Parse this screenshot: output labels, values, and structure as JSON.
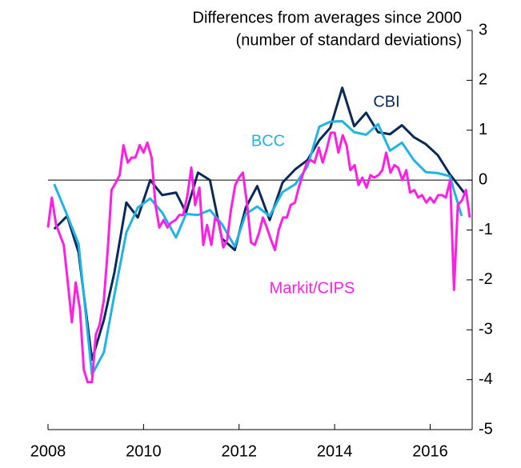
{
  "chart_data": {
    "type": "line",
    "title": "Differences from averages since 2000",
    "subtitle": "(number of standard deviations)",
    "xlim": [
      2008,
      2016.88
    ],
    "xticks": [
      2008,
      2010,
      2012,
      2014,
      2016
    ],
    "ylim": [
      -5,
      3
    ],
    "yticks": [
      -5,
      -4,
      -3,
      -2,
      -1,
      0,
      1,
      2,
      3
    ],
    "y_axis_side": "right",
    "zero_line": true,
    "series": [
      {
        "name": "CBI",
        "color": "#0b2a5c",
        "x": [
          2008.13,
          2008.4,
          2008.64,
          2008.92,
          2009.17,
          2009.39,
          2009.64,
          2009.88,
          2010.14,
          2010.39,
          2010.68,
          2010.89,
          2011.14,
          2011.39,
          2011.64,
          2011.91,
          2012.14,
          2012.38,
          2012.64,
          2012.91,
          2013.18,
          2013.43,
          2013.68,
          2013.91,
          2014.16,
          2014.41,
          2014.66,
          2014.91,
          2015.16,
          2015.41,
          2015.66,
          2015.91,
          2016.16,
          2016.41,
          2016.75
        ],
        "values": [
          -0.98,
          -0.72,
          -1.45,
          -3.6,
          -2.8,
          -1.85,
          -0.45,
          -0.75,
          0.0,
          -0.3,
          -0.25,
          -0.65,
          0.15,
          0.0,
          -1.17,
          -1.4,
          -0.55,
          -0.12,
          -0.8,
          -0.05,
          0.22,
          0.4,
          0.8,
          1.05,
          1.85,
          1.08,
          1.35,
          0.96,
          0.92,
          1.1,
          0.86,
          0.72,
          0.5,
          0.12,
          -0.3
        ]
      },
      {
        "name": "BCC",
        "color": "#1eb4e6",
        "x": [
          2008.13,
          2008.4,
          2008.64,
          2008.92,
          2009.17,
          2009.39,
          2009.64,
          2009.88,
          2010.14,
          2010.39,
          2010.68,
          2010.89,
          2011.14,
          2011.39,
          2011.64,
          2011.91,
          2012.14,
          2012.38,
          2012.64,
          2012.91,
          2013.18,
          2013.43,
          2013.68,
          2013.91,
          2014.16,
          2014.41,
          2014.66,
          2014.91,
          2015.16,
          2015.41,
          2015.66,
          2015.91,
          2016.16,
          2016.41,
          2016.66
        ],
        "values": [
          -0.08,
          -0.7,
          -1.28,
          -3.9,
          -3.45,
          -2.3,
          -1.05,
          -0.55,
          -0.37,
          -0.65,
          -1.15,
          -0.68,
          -0.7,
          -0.6,
          -0.88,
          -1.33,
          -0.68,
          -0.53,
          -0.72,
          -0.24,
          -0.08,
          0.27,
          1.07,
          1.17,
          1.18,
          0.96,
          0.91,
          1.12,
          0.59,
          0.75,
          0.4,
          0.16,
          0.14,
          0.08,
          -0.72
        ]
      },
      {
        "name": "Markit/CIPS",
        "color": "#ff1ee6",
        "x": [
          2008.0,
          2008.08,
          2008.17,
          2008.25,
          2008.33,
          2008.42,
          2008.5,
          2008.58,
          2008.67,
          2008.75,
          2008.83,
          2008.92,
          2009.0,
          2009.08,
          2009.17,
          2009.25,
          2009.33,
          2009.42,
          2009.5,
          2009.58,
          2009.67,
          2009.75,
          2009.83,
          2009.92,
          2010.0,
          2010.08,
          2010.17,
          2010.25,
          2010.33,
          2010.42,
          2010.5,
          2010.58,
          2010.67,
          2010.75,
          2010.83,
          2010.92,
          2011.0,
          2011.08,
          2011.17,
          2011.25,
          2011.33,
          2011.42,
          2011.5,
          2011.58,
          2011.67,
          2011.75,
          2011.83,
          2011.92,
          2012.0,
          2012.08,
          2012.17,
          2012.25,
          2012.33,
          2012.42,
          2012.5,
          2012.58,
          2012.67,
          2012.75,
          2012.83,
          2012.92,
          2013.0,
          2013.08,
          2013.17,
          2013.25,
          2013.33,
          2013.42,
          2013.5,
          2013.58,
          2013.67,
          2013.75,
          2013.83,
          2013.92,
          2014.0,
          2014.08,
          2014.17,
          2014.25,
          2014.33,
          2014.42,
          2014.5,
          2014.58,
          2014.67,
          2014.75,
          2014.83,
          2014.92,
          2015.0,
          2015.08,
          2015.17,
          2015.25,
          2015.33,
          2015.42,
          2015.5,
          2015.58,
          2015.67,
          2015.75,
          2015.83,
          2015.92,
          2016.0,
          2016.08,
          2016.17,
          2016.25,
          2016.33,
          2016.42,
          2016.5,
          2016.58,
          2016.67,
          2016.75,
          2016.83
        ],
        "values": [
          -0.95,
          -0.35,
          -0.9,
          -1.1,
          -1.3,
          -2.1,
          -2.85,
          -2.05,
          -2.6,
          -3.8,
          -4.05,
          -4.05,
          -3.1,
          -2.9,
          -2.4,
          -1.4,
          -0.2,
          -0.05,
          0.1,
          0.7,
          0.35,
          0.45,
          0.45,
          0.7,
          0.55,
          0.75,
          0.45,
          -0.5,
          -0.95,
          -0.8,
          -0.95,
          -0.85,
          -0.8,
          -0.7,
          -0.7,
          -0.3,
          0.25,
          -0.5,
          -0.15,
          -1.3,
          -0.9,
          -1.3,
          -0.75,
          -0.85,
          -1.35,
          -1.2,
          -0.6,
          -0.1,
          0.05,
          0.15,
          -0.5,
          -1.25,
          -1.3,
          -1.05,
          -0.75,
          -0.95,
          -1.2,
          -1.4,
          -1.0,
          -0.75,
          -0.75,
          -0.5,
          -0.45,
          -0.15,
          0.1,
          0.35,
          0.4,
          0.35,
          0.65,
          0.35,
          0.6,
          0.95,
          0.95,
          0.55,
          0.9,
          0.7,
          0.2,
          0.3,
          -0.1,
          0.05,
          -0.15,
          0.1,
          0.05,
          0.1,
          0.2,
          0.55,
          0.15,
          0.3,
          0.25,
          0.0,
          0.2,
          -0.25,
          -0.2,
          -0.35,
          -0.3,
          -0.45,
          -0.35,
          -0.45,
          -0.3,
          -0.3,
          -0.35,
          0.0,
          -2.2,
          -0.5,
          -0.4,
          -0.2,
          -0.75
        ]
      }
    ]
  }
}
